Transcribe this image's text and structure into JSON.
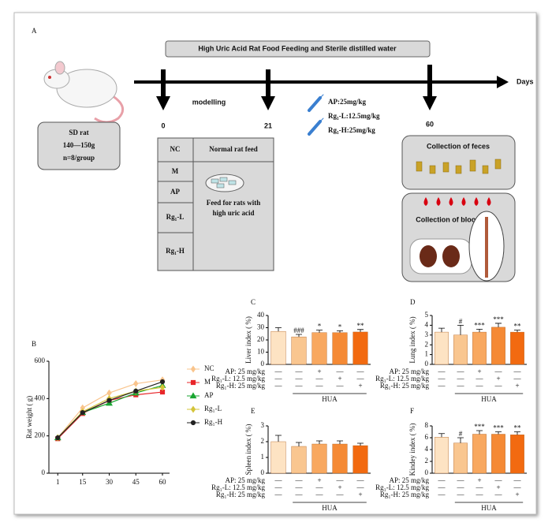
{
  "panel_a": {
    "label": "A",
    "banner": "High Uric Acid Rat Food Feeding and Sterile distilled water",
    "axis_label": "Days",
    "timepoints": [
      "0",
      "21",
      "60"
    ],
    "phase": "modelling",
    "animal": [
      "SD rat",
      "140—150g",
      "n=8/group"
    ],
    "doses": [
      "AP:25mg/kg",
      "Rg₁-L:12.5mg/kg",
      "Rg₁-H:25mg/kg"
    ],
    "groups": {
      "header": [
        "NC",
        "Normal rat feed"
      ],
      "rows": [
        "M",
        "AP",
        "Rg₁-L",
        "Rg₁-H"
      ],
      "feed": [
        "Feed for rats with",
        "high uric acid"
      ]
    },
    "collection": [
      "Collection of feces",
      "Collection of blood"
    ]
  },
  "chart_data": [
    {
      "type": "line",
      "panel": "B",
      "ylabel": "Rat weight ( g)",
      "x": [
        1,
        15,
        30,
        45,
        60
      ],
      "xlim": [
        -4,
        64
      ],
      "xticks": [
        1,
        15,
        30,
        45,
        60
      ],
      "ylim": [
        0,
        600
      ],
      "yticks": [
        0,
        200,
        400,
        600
      ],
      "legend": "right",
      "series": [
        {
          "name": "NC",
          "color": "#f9c48c",
          "marker": "diamond",
          "values": [
            190,
            350,
            430,
            480,
            500
          ]
        },
        {
          "name": "M",
          "color": "#e8262a",
          "marker": "square",
          "values": [
            185,
            320,
            390,
            420,
            435
          ]
        },
        {
          "name": "AP",
          "color": "#1aa632",
          "marker": "triangle",
          "values": [
            190,
            325,
            375,
            430,
            470
          ]
        },
        {
          "name": "Rg₁-L",
          "color": "#d4c43a",
          "marker": "diamond",
          "values": [
            190,
            330,
            400,
            440,
            460
          ]
        },
        {
          "name": "Rg₁-H",
          "color": "#222222",
          "marker": "circle",
          "values": [
            190,
            325,
            390,
            440,
            490
          ]
        }
      ]
    },
    {
      "type": "bar",
      "panel": "C",
      "ylabel": "Liver index ( %)",
      "ylim": [
        0,
        40
      ],
      "yticks": [
        0,
        10,
        20,
        30,
        40
      ],
      "colors": [
        "#fde3c3",
        "#f9c690",
        "#f8a860",
        "#f58a35",
        "#f26a10"
      ],
      "values": [
        27,
        22.5,
        26,
        26,
        26.5
      ],
      "errors": [
        3,
        2,
        2,
        1.5,
        2
      ],
      "annotations": [
        null,
        "###",
        "*",
        "*",
        "**"
      ],
      "treatments": [
        {
          "label": "AP: 25 mg/kg",
          "marks": [
            "—",
            "—",
            "+",
            "—",
            "—"
          ]
        },
        {
          "label": "Rg₁-L: 12.5 mg/kg",
          "marks": [
            "—",
            "—",
            "—",
            "+",
            "—"
          ]
        },
        {
          "label": "Rg₁-H: 25 mg/kg",
          "marks": [
            "—",
            "—",
            "—",
            "—",
            "+"
          ]
        }
      ],
      "group_label": "HUA"
    },
    {
      "type": "bar",
      "panel": "D",
      "ylabel": "Lung index ( %)",
      "ylim": [
        0,
        5
      ],
      "yticks": [
        0,
        1,
        2,
        3,
        4,
        5
      ],
      "colors": [
        "#fde3c3",
        "#f9c690",
        "#f8a860",
        "#f58a35",
        "#f26a10"
      ],
      "values": [
        3.3,
        3.0,
        3.3,
        3.8,
        3.3
      ],
      "errors": [
        0.4,
        1.0,
        0.3,
        0.4,
        0.2
      ],
      "annotations": [
        null,
        "#",
        "***",
        "***",
        "**"
      ],
      "treatments": [
        {
          "label": "AP: 25 mg/kg",
          "marks": [
            "—",
            "—",
            "+",
            "—",
            "—"
          ]
        },
        {
          "label": "Rg₁-L: 12.5 mg/kg",
          "marks": [
            "—",
            "—",
            "—",
            "+",
            "—"
          ]
        },
        {
          "label": "Rg₁-H: 25 mg/kg",
          "marks": [
            "—",
            "—",
            "—",
            "—",
            "+"
          ]
        }
      ],
      "group_label": "HUA"
    },
    {
      "type": "bar",
      "panel": "E",
      "ylabel": "Spleen index ( %)",
      "ylim": [
        0,
        3
      ],
      "yticks": [
        0,
        1,
        2,
        3
      ],
      "colors": [
        "#fde3c3",
        "#f9c690",
        "#f8a860",
        "#f58a35",
        "#f26a10"
      ],
      "values": [
        2.0,
        1.7,
        1.85,
        1.85,
        1.75
      ],
      "errors": [
        0.4,
        0.25,
        0.2,
        0.2,
        0.15
      ],
      "annotations": [
        null,
        null,
        null,
        null,
        null
      ],
      "treatments": [
        {
          "label": "AP: 25 mg/kg",
          "marks": [
            "—",
            "—",
            "+",
            "—",
            "—"
          ]
        },
        {
          "label": "Rg₁-L: 12.5 mg/kg",
          "marks": [
            "—",
            "—",
            "—",
            "+",
            "—"
          ]
        },
        {
          "label": "Rg₁-H: 25 mg/kg",
          "marks": [
            "—",
            "—",
            "—",
            "—",
            "+"
          ]
        }
      ],
      "group_label": "HUA"
    },
    {
      "type": "bar",
      "panel": "F",
      "ylabel": "Kindey index ( %)",
      "ylim": [
        0,
        8
      ],
      "yticks": [
        0,
        2,
        4,
        6,
        8
      ],
      "colors": [
        "#fde3c3",
        "#f9c690",
        "#f8a860",
        "#f58a35",
        "#f26a10"
      ],
      "values": [
        6.1,
        5.1,
        6.6,
        6.6,
        6.5
      ],
      "errors": [
        0.6,
        0.9,
        0.6,
        0.4,
        0.5
      ],
      "annotations": [
        null,
        "#",
        "***",
        "***",
        "**"
      ],
      "treatments": [
        {
          "label": "AP: 25 mg/kg",
          "marks": [
            "—",
            "—",
            "+",
            "—",
            "—"
          ]
        },
        {
          "label": "Rg₁-L: 12.5 mg/kg",
          "marks": [
            "—",
            "—",
            "—",
            "+",
            "—"
          ]
        },
        {
          "label": "Rg₁-H: 25 mg/kg",
          "marks": [
            "—",
            "—",
            "—",
            "—",
            "+"
          ]
        }
      ],
      "group_label": "HUA"
    }
  ]
}
